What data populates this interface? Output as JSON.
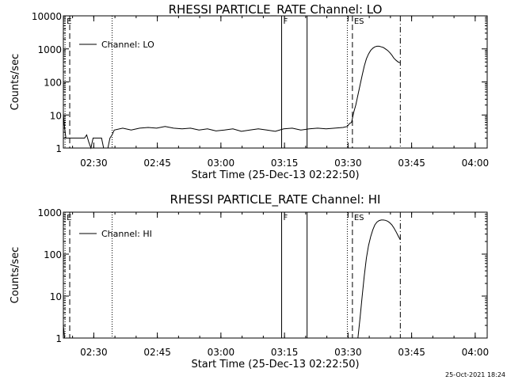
{
  "chart_data": [
    {
      "type": "line",
      "title": "RHESSI PARTICLE_RATE Channel: LO",
      "xlabel": "Start Time (25-Dec-13 02:22:50)",
      "ylabel": "Counts/sec",
      "yscale": "log",
      "ylim": [
        1,
        10000
      ],
      "xlim_minutes": [
        0,
        100
      ],
      "y_tick_labels": [
        "1",
        "10",
        "100",
        "1000",
        "10000"
      ],
      "y_tick_values": [
        1,
        10,
        100,
        1000,
        10000
      ],
      "x_tick_labels": [
        "02:30",
        "02:45",
        "03:00",
        "03:15",
        "03:30",
        "03:45",
        "04:00"
      ],
      "x_tick_values_minutes": [
        7.17,
        22.17,
        37.17,
        52.17,
        67.17,
        82.17,
        97.17
      ],
      "legend": {
        "label": "Channel: LO",
        "placement": "top-left"
      },
      "markers": [
        {
          "label": "E",
          "x": 0.4,
          "style": "dotted"
        },
        {
          "label": "",
          "x": 1.5,
          "style": "dashed"
        },
        {
          "label": "",
          "x": 11.5,
          "style": "dotted"
        },
        {
          "label": "F",
          "x": 51.5,
          "style": "solid"
        },
        {
          "label": "",
          "x": 57.5,
          "style": "solid"
        },
        {
          "label": "",
          "x": 67.0,
          "style": "dotted"
        },
        {
          "label": "ES",
          "x": 68.2,
          "style": "dashed"
        },
        {
          "label": "",
          "x": 79.5,
          "style": "dashdot"
        }
      ],
      "series": [
        {
          "name": "Channel: LO",
          "x": [
            0,
            0.3,
            0.6,
            1,
            2,
            3,
            4,
            5,
            5.5,
            6,
            6.5,
            7,
            7.5,
            8,
            8.5,
            9,
            9.5,
            10,
            10.5,
            11,
            11.5,
            12,
            14,
            16,
            18,
            20,
            22,
            24,
            26,
            28,
            30,
            32,
            34,
            36,
            38,
            40,
            42,
            44,
            46,
            48,
            50,
            52,
            54,
            56,
            58,
            60,
            62,
            64,
            66,
            67,
            67.5,
            68,
            68.5,
            69,
            69.5,
            70,
            70.5,
            71,
            71.5,
            72,
            72.5,
            73,
            73.5,
            74,
            74.5,
            75,
            75.5,
            76,
            76.5,
            77,
            77.5,
            78,
            78.5,
            79,
            79.5
          ],
          "y": [
            10,
            4,
            2,
            2,
            2,
            2,
            2,
            2,
            2.5,
            1.5,
            1,
            2,
            2,
            2,
            2,
            2,
            1,
            1,
            1,
            2,
            2.5,
            3.5,
            4,
            3.5,
            4,
            4.2,
            4,
            4.5,
            4,
            3.8,
            4,
            3.5,
            3.8,
            3.3,
            3.5,
            3.8,
            3.2,
            3.5,
            3.8,
            3.5,
            3.2,
            3.8,
            4,
            3.5,
            3.8,
            4,
            3.8,
            4,
            4.2,
            4.5,
            5.5,
            6,
            12,
            20,
            40,
            80,
            160,
            300,
            500,
            700,
            900,
            1050,
            1150,
            1200,
            1200,
            1150,
            1100,
            1000,
            900,
            780,
            650,
            520,
            450,
            400,
            380
          ]
        }
      ]
    },
    {
      "type": "line",
      "title": "RHESSI PARTICLE_RATE Channel: HI",
      "xlabel": "Start Time (25-Dec-13 02:22:50)",
      "ylabel": "Counts/sec",
      "yscale": "log",
      "ylim": [
        1,
        1000
      ],
      "xlim_minutes": [
        0,
        100
      ],
      "y_tick_labels": [
        "1",
        "10",
        "100",
        "1000"
      ],
      "y_tick_values": [
        1,
        10,
        100,
        1000
      ],
      "x_tick_labels": [
        "02:30",
        "02:45",
        "03:00",
        "03:15",
        "03:30",
        "03:45",
        "04:00"
      ],
      "x_tick_values_minutes": [
        7.17,
        22.17,
        37.17,
        52.17,
        67.17,
        82.17,
        97.17
      ],
      "legend": {
        "label": "Channel: HI",
        "placement": "top-left"
      },
      "markers": [
        {
          "label": "E",
          "x": 0.4,
          "style": "dotted"
        },
        {
          "label": "",
          "x": 1.5,
          "style": "dashed"
        },
        {
          "label": "",
          "x": 11.5,
          "style": "dotted"
        },
        {
          "label": "F",
          "x": 51.5,
          "style": "solid"
        },
        {
          "label": "",
          "x": 57.5,
          "style": "solid"
        },
        {
          "label": "",
          "x": 67.0,
          "style": "dotted"
        },
        {
          "label": "ES",
          "x": 68.2,
          "style": "dashed"
        },
        {
          "label": "",
          "x": 79.5,
          "style": "dashdot"
        }
      ],
      "series": [
        {
          "name": "Channel: HI",
          "x": [
            0,
            0.3,
            69.5,
            70,
            70.5,
            71,
            71.5,
            72,
            72.5,
            73,
            73.5,
            74,
            74.5,
            75,
            75.5,
            76,
            76.5,
            77,
            77.5,
            78,
            78.5,
            79,
            79.5
          ],
          "y": [
            2,
            1,
            1,
            3,
            10,
            30,
            80,
            160,
            260,
            380,
            500,
            580,
            630,
            650,
            650,
            640,
            610,
            560,
            500,
            420,
            340,
            270,
            220
          ]
        }
      ]
    }
  ],
  "footer": {
    "timestamp": "25-Oct-2021 18:24"
  }
}
